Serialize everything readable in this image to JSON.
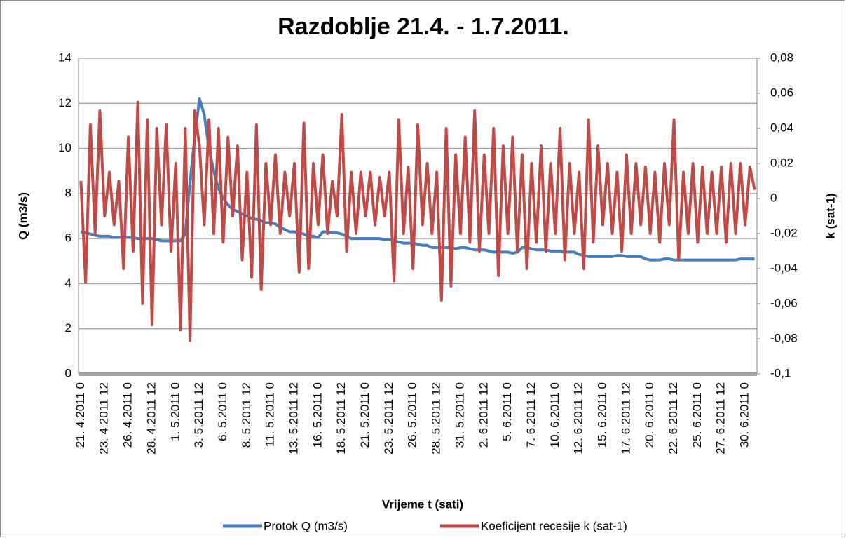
{
  "chart_data": {
    "type": "line",
    "title": "Razdoblje 21.4. - 1.7.2011.",
    "xlabel": "Vrijeme t (sati)",
    "ylabel": "Q  (m3/s)",
    "y2label": "k  (sat-1)",
    "categories": [
      "21. 4.2011 0",
      null,
      null,
      null,
      null,
      "23. 4.2011 12",
      null,
      null,
      null,
      null,
      "26. 4.2011 0",
      null,
      null,
      null,
      null,
      "28. 4.2011 12",
      null,
      null,
      null,
      null,
      "1. 5.2011 0",
      null,
      null,
      null,
      null,
      "3. 5.2011 12",
      null,
      null,
      null,
      null,
      "6. 5.2011 0",
      null,
      null,
      null,
      null,
      "8. 5.2011 12",
      null,
      null,
      null,
      null,
      "11. 5.2011 0",
      null,
      null,
      null,
      null,
      "13. 5.2011 12",
      null,
      null,
      null,
      null,
      "16. 5.2011 0",
      null,
      null,
      null,
      null,
      "18. 5.2011 12",
      null,
      null,
      null,
      null,
      "21. 5.2011 0",
      null,
      null,
      null,
      null,
      "23. 5.2011 12",
      null,
      null,
      null,
      null,
      "26. 5.2011 0",
      null,
      null,
      null,
      null,
      "28. 5.2011 12",
      null,
      null,
      null,
      null,
      "31. 5.2011 0",
      null,
      null,
      null,
      null,
      "2. 6.2011 12",
      null,
      null,
      null,
      null,
      "5. 6.2011 0",
      null,
      null,
      null,
      null,
      "7. 6.2011 12",
      null,
      null,
      null,
      null,
      "10. 6.2011 0",
      null,
      null,
      null,
      null,
      "12. 6.2011 12",
      null,
      null,
      null,
      null,
      "15. 6.2011 0",
      null,
      null,
      null,
      null,
      "17. 6.2011 12",
      null,
      null,
      null,
      null,
      "20. 6.2011 0",
      null,
      null,
      null,
      null,
      "22. 6.2011 12",
      null,
      null,
      null,
      null,
      "25. 6.2011 0",
      null,
      null,
      null,
      null,
      "27. 6.2011 12",
      null,
      null,
      null,
      null,
      "30. 6.2011 0",
      null,
      null
    ],
    "series": [
      {
        "name": "Protok Q (m3/s)",
        "color": "#4a7ebb",
        "values": [
          6.3,
          6.25,
          6.2,
          6.15,
          6.1,
          6.1,
          6.1,
          6.05,
          6.05,
          6.05,
          6.05,
          6.05,
          6.0,
          6.0,
          6.0,
          6.0,
          5.95,
          5.9,
          5.9,
          5.9,
          5.9,
          5.9,
          6.2,
          8.5,
          10.5,
          12.2,
          11.5,
          10.0,
          9.0,
          8.2,
          7.8,
          7.5,
          7.3,
          7.2,
          7.1,
          7.0,
          6.9,
          6.85,
          6.8,
          6.7,
          6.7,
          6.65,
          6.5,
          6.4,
          6.3,
          6.3,
          6.25,
          6.2,
          6.1,
          6.1,
          6.05,
          6.3,
          6.3,
          6.25,
          6.25,
          6.2,
          6.1,
          6.0,
          6.0,
          6.0,
          6.0,
          6.0,
          6.0,
          6.0,
          5.95,
          5.95,
          5.9,
          5.85,
          5.8,
          5.8,
          5.8,
          5.75,
          5.7,
          5.7,
          5.6,
          5.6,
          5.6,
          5.6,
          5.6,
          5.55,
          5.6,
          5.6,
          5.55,
          5.5,
          5.5,
          5.5,
          5.45,
          5.4,
          5.4,
          5.4,
          5.4,
          5.35,
          5.4,
          5.6,
          5.6,
          5.55,
          5.5,
          5.5,
          5.5,
          5.45,
          5.45,
          5.45,
          5.4,
          5.4,
          5.4,
          5.3,
          5.25,
          5.2,
          5.2,
          5.2,
          5.2,
          5.2,
          5.2,
          5.25,
          5.25,
          5.2,
          5.2,
          5.2,
          5.2,
          5.1,
          5.05,
          5.05,
          5.05,
          5.1,
          5.1,
          5.05,
          5.05,
          5.05,
          5.05,
          5.05,
          5.05,
          5.05,
          5.05,
          5.05,
          5.05,
          5.05,
          5.05,
          5.05,
          5.05,
          5.1,
          5.1,
          5.1,
          5.1
        ]
      },
      {
        "name": "Koeficijent recesije k (sat-1)",
        "color": "#be4b48",
        "axis": "y2",
        "values": [
          0.01,
          -0.048,
          0.042,
          -0.02,
          0.05,
          -0.01,
          0.015,
          -0.015,
          0.01,
          -0.04,
          0.035,
          -0.03,
          0.055,
          -0.06,
          0.045,
          -0.072,
          0.04,
          -0.015,
          0.042,
          -0.03,
          0.02,
          -0.075,
          0.04,
          -0.081,
          0.05,
          0.03,
          -0.015,
          0.045,
          -0.02,
          0.04,
          -0.025,
          0.035,
          -0.01,
          0.03,
          -0.035,
          0.015,
          -0.045,
          0.042,
          -0.052,
          0.02,
          -0.015,
          0.025,
          -0.02,
          0.015,
          -0.01,
          0.02,
          -0.042,
          0.043,
          -0.04,
          0.02,
          -0.015,
          0.025,
          -0.02,
          0.01,
          -0.01,
          0.048,
          -0.03,
          0.015,
          -0.02,
          0.015,
          -0.01,
          0.015,
          -0.015,
          0.012,
          -0.01,
          0.015,
          -0.047,
          0.045,
          -0.02,
          0.018,
          -0.04,
          0.042,
          -0.015,
          0.02,
          -0.02,
          0.015,
          -0.058,
          0.04,
          -0.05,
          0.025,
          -0.02,
          0.035,
          -0.025,
          0.05,
          -0.03,
          0.025,
          -0.02,
          0.04,
          -0.044,
          0.03,
          -0.02,
          0.035,
          -0.03,
          0.025,
          -0.04,
          0.02,
          -0.025,
          0.03,
          -0.03,
          0.02,
          -0.02,
          0.04,
          -0.035,
          0.02,
          -0.02,
          0.015,
          -0.04,
          0.045,
          -0.025,
          0.03,
          -0.015,
          0.02,
          -0.02,
          0.015,
          -0.03,
          0.025,
          -0.02,
          0.02,
          -0.015,
          0.018,
          -0.02,
          0.015,
          -0.025,
          0.02,
          -0.015,
          0.045,
          -0.035,
          0.015,
          -0.02,
          0.02,
          -0.025,
          0.018,
          -0.02,
          0.015,
          -0.02,
          0.018,
          -0.025,
          0.02,
          -0.02,
          0.02,
          -0.015,
          0.018,
          0.005
        ]
      }
    ],
    "ylim": [
      0,
      14
    ],
    "yticks": [
      0,
      2,
      4,
      6,
      8,
      10,
      12,
      14
    ],
    "y2lim": [
      -0.1,
      0.08
    ],
    "y2ticks": [
      {
        "value": -0.1,
        "label": "-0,1"
      },
      {
        "value": -0.08,
        "label": "-0,08"
      },
      {
        "value": -0.06,
        "label": "-0,06"
      },
      {
        "value": -0.04,
        "label": "-0,04"
      },
      {
        "value": -0.02,
        "label": "-0,02"
      },
      0,
      {
        "value": 0.02,
        "label": "0,02"
      },
      {
        "value": 0.04,
        "label": "0,04"
      },
      {
        "value": 0.06,
        "label": "0,06"
      },
      {
        "value": 0.08,
        "label": "0,08"
      }
    ],
    "grid": true,
    "legend": "bottom"
  }
}
